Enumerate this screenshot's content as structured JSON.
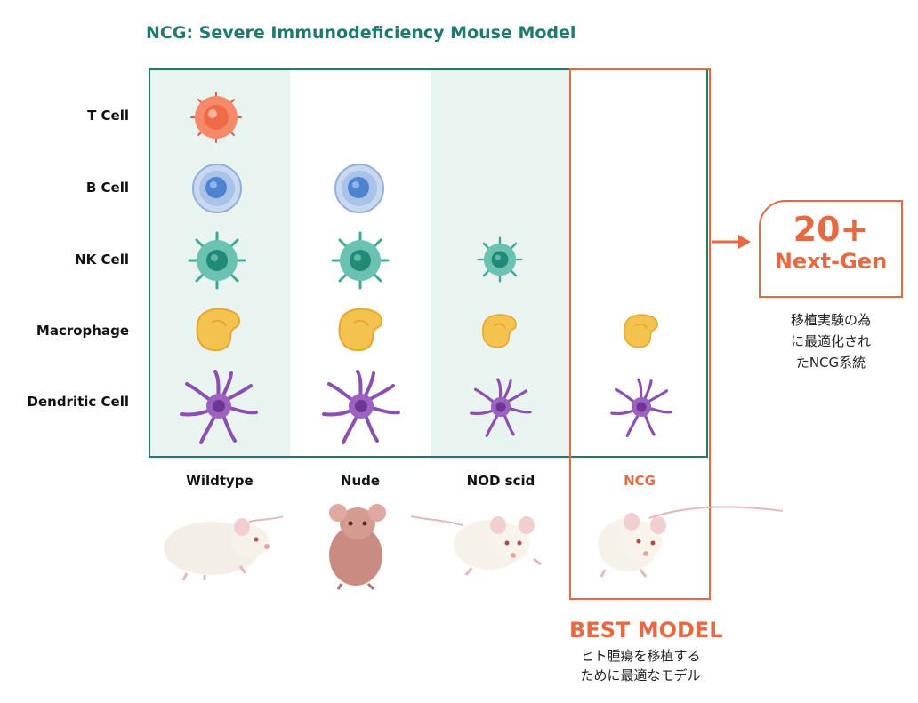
{
  "title": "NCG: Severe Immunodeficiency Mouse Model",
  "rows": [
    "T Cell",
    "B Cell",
    "NK Cell",
    "Macrophage",
    "Dendritic Cell"
  ],
  "columns": [
    "Wildtype",
    "Nude",
    "NOD scid",
    "NCG"
  ],
  "presence": {
    "Wildtype": {
      "T Cell": true,
      "B Cell": true,
      "NK Cell": true,
      "Macrophage": true,
      "Dendritic Cell": true
    },
    "Nude": {
      "T Cell": false,
      "B Cell": true,
      "NK Cell": true,
      "Macrophage": true,
      "Dendritic Cell": true
    },
    "NOD scid": {
      "T Cell": false,
      "B Cell": false,
      "NK Cell": true,
      "Macrophage": true,
      "Dendritic Cell": true
    },
    "NCG": {
      "T Cell": false,
      "B Cell": false,
      "NK Cell": false,
      "Macrophage": true,
      "Dendritic Cell": true
    }
  },
  "callout": {
    "big": "20+",
    "small": "Next-Gen",
    "sub_line1": "移植実験の為",
    "sub_line2": "に最適化され",
    "sub_line3": "たNCG系統"
  },
  "best_model": {
    "label": "BEST MODEL",
    "sub_line1": "ヒト腫瘍を移植する",
    "sub_line2": "ために最適なモデル"
  },
  "colors": {
    "green": "#1f7a6b",
    "orange": "#e36a43",
    "shade": "#e9f3ef",
    "t_cell": "#f07a5a",
    "b_cell": "#5b8fd6",
    "nk_cell": "#3fa896",
    "macrophage": "#f4c24e",
    "dendritic": "#8a4fb0"
  },
  "icons": {
    "t_cell": "t-cell-icon",
    "b_cell": "b-cell-icon",
    "nk_cell": "nk-cell-icon",
    "macrophage": "macrophage-icon",
    "dendritic": "dendritic-cell-icon",
    "mouse": "mouse-icon",
    "arrow": "arrow-right-icon"
  }
}
